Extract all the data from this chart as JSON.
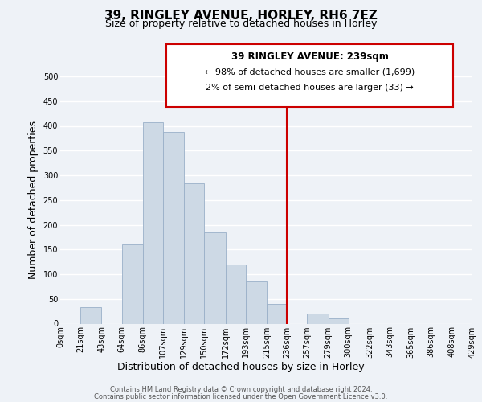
{
  "title": "39, RINGLEY AVENUE, HORLEY, RH6 7EZ",
  "subtitle": "Size of property relative to detached houses in Horley",
  "xlabel": "Distribution of detached houses by size in Horley",
  "ylabel": "Number of detached properties",
  "bin_edges": [
    0,
    21,
    43,
    64,
    86,
    107,
    129,
    150,
    172,
    193,
    215,
    236,
    257,
    279,
    300,
    322,
    343,
    365,
    386,
    408,
    429
  ],
  "bin_edge_labels": [
    "0sqm",
    "21sqm",
    "43sqm",
    "64sqm",
    "86sqm",
    "107sqm",
    "129sqm",
    "150sqm",
    "172sqm",
    "193sqm",
    "215sqm",
    "236sqm",
    "257sqm",
    "279sqm",
    "300sqm",
    "322sqm",
    "343sqm",
    "365sqm",
    "386sqm",
    "408sqm",
    "429sqm"
  ],
  "bar_heights": [
    0,
    33,
    0,
    160,
    407,
    387,
    284,
    184,
    119,
    86,
    40,
    0,
    20,
    11,
    0,
    0,
    0,
    0,
    0,
    0
  ],
  "bar_color": "#cdd9e5",
  "bar_edge_color": "#9ab0c8",
  "vline_x": 11,
  "vline_color": "#cc0000",
  "ylim": [
    0,
    500
  ],
  "yticks": [
    0,
    50,
    100,
    150,
    200,
    250,
    300,
    350,
    400,
    450,
    500
  ],
  "annotation_title": "39 RINGLEY AVENUE: 239sqm",
  "annotation_line1": "← 98% of detached houses are smaller (1,699)",
  "annotation_line2": "2% of semi-detached houses are larger (33) →",
  "annotation_box_color": "#ffffff",
  "annotation_box_edge": "#cc0000",
  "footer_line1": "Contains HM Land Registry data © Crown copyright and database right 2024.",
  "footer_line2": "Contains public sector information licensed under the Open Government Licence v3.0.",
  "background_color": "#eef2f7",
  "plot_bg_color": "#eef2f7",
  "grid_color": "#ffffff",
  "title_fontsize": 11,
  "subtitle_fontsize": 9,
  "axis_label_fontsize": 9,
  "tick_fontsize": 7,
  "annotation_title_fontsize": 8.5,
  "annotation_text_fontsize": 8,
  "footer_fontsize": 6
}
